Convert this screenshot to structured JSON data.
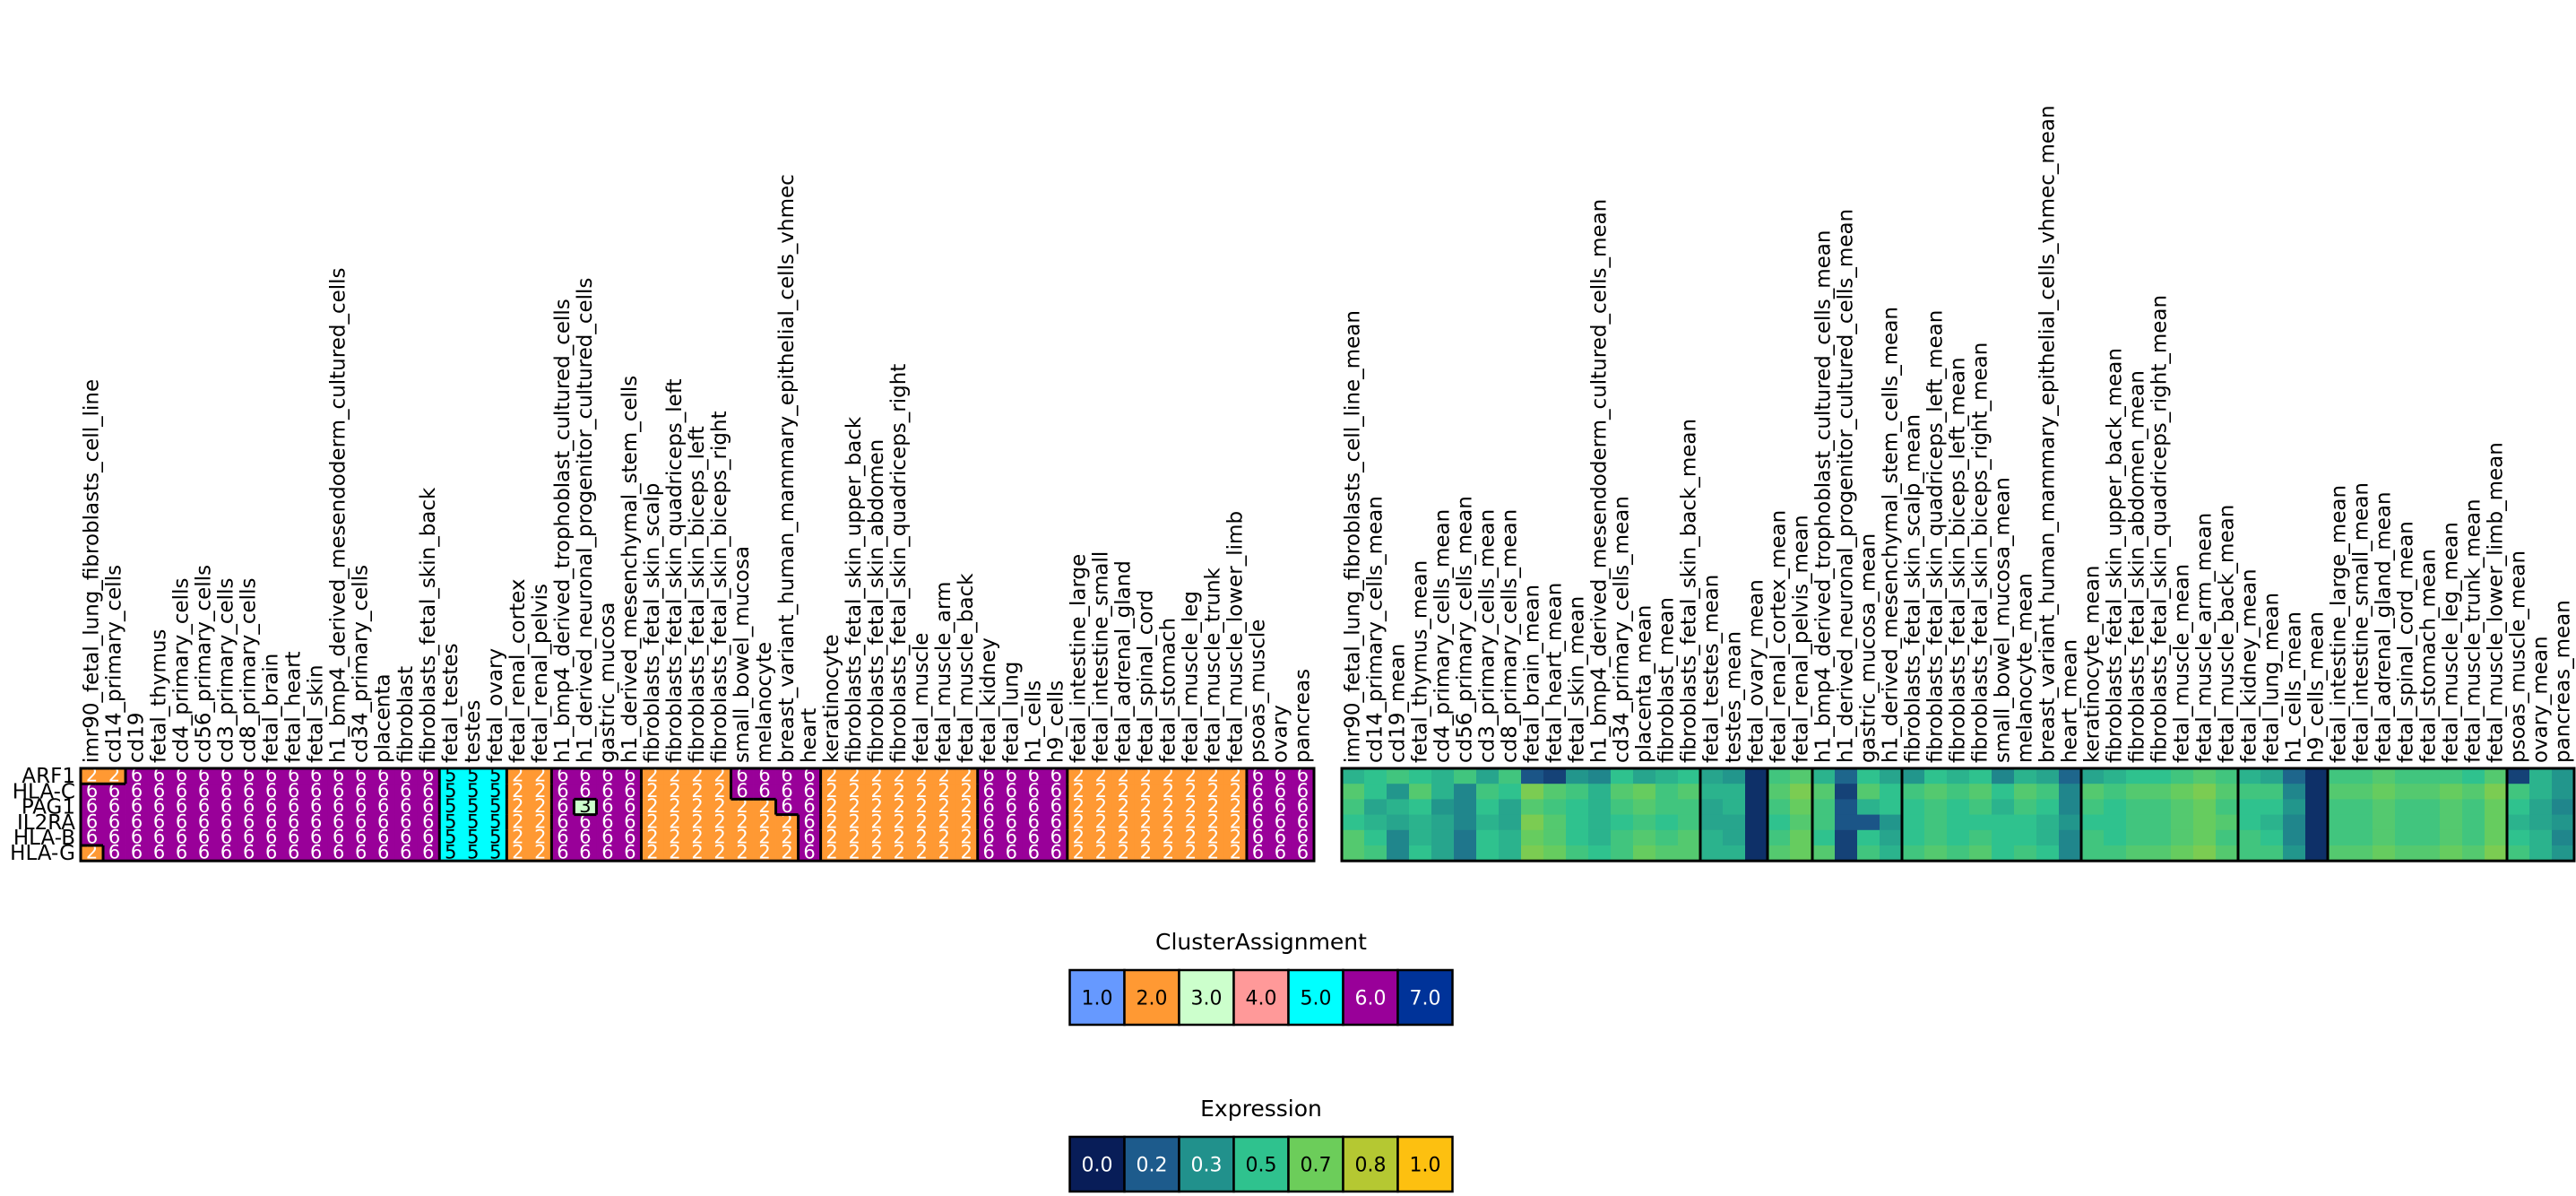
{
  "chart_data": [
    {
      "type": "heatmap",
      "name": "cluster-assignment-heatmap",
      "rows": [
        "ARF1",
        "HLA-C",
        "PAG1",
        "IL2RA",
        "HLA-B",
        "HLA-G"
      ],
      "columns": [
        "imr90_fetal_lung_fibroblasts_cell_line",
        "cd14_primary_cells",
        "cd19",
        "fetal_thymus",
        "cd4_primary_cells",
        "cd56_primary_cells",
        "cd3_primary_cells",
        "cd8_primary_cells",
        "fetal_brain",
        "fetal_heart",
        "fetal_skin",
        "h1_bmp4_derived_mesendoderm_cultured_cells",
        "cd34_primary_cells",
        "placenta",
        "fibroblast",
        "fibroblasts_fetal_skin_back",
        "fetal_testes",
        "testes",
        "fetal_ovary",
        "fetal_renal_cortex",
        "fetal_renal_pelvis",
        "h1_bmp4_derived_trophoblast_cultured_cells",
        "h1_derived_neuronal_progenitor_cultured_cells",
        "gastric_mucosa",
        "h1_derived_mesenchymal_stem_cells",
        "fibroblasts_fetal_skin_scalp",
        "fibroblasts_fetal_skin_quadriceps_left",
        "fibroblasts_fetal_skin_biceps_left",
        "fibroblasts_fetal_skin_biceps_right",
        "small_bowel_mucosa",
        "melanocyte",
        "breast_variant_human_mammary_epithelial_cells_vhmec",
        "heart",
        "keratinocyte",
        "fibroblasts_fetal_skin_upper_back",
        "fibroblasts_fetal_skin_abdomen",
        "fibroblasts_fetal_skin_quadriceps_right",
        "fetal_muscle",
        "fetal_muscle_arm",
        "fetal_muscle_back",
        "fetal_kidney",
        "fetal_lung",
        "h1_cells",
        "h9_cells",
        "fetal_intestine_large",
        "fetal_intestine_small",
        "fetal_adrenal_gland",
        "fetal_spinal_cord",
        "fetal_stomach",
        "fetal_muscle_leg",
        "fetal_muscle_trunk",
        "fetal_muscle_lower_limb",
        "psoas_muscle",
        "ovary",
        "pancreas"
      ],
      "values": [
        [
          2,
          2,
          6,
          6,
          6,
          6,
          6,
          6,
          6,
          6,
          6,
          6,
          6,
          6,
          6,
          6,
          5,
          5,
          5,
          2,
          2,
          6,
          6,
          6,
          6,
          2,
          2,
          2,
          2,
          6,
          6,
          6,
          6,
          2,
          2,
          2,
          2,
          2,
          2,
          2,
          6,
          6,
          6,
          6,
          2,
          2,
          2,
          2,
          2,
          2,
          2,
          2,
          6,
          6,
          6
        ],
        [
          6,
          6,
          6,
          6,
          6,
          6,
          6,
          6,
          6,
          6,
          6,
          6,
          6,
          6,
          6,
          6,
          5,
          5,
          5,
          2,
          2,
          6,
          6,
          6,
          6,
          2,
          2,
          2,
          2,
          6,
          6,
          6,
          6,
          2,
          2,
          2,
          2,
          2,
          2,
          2,
          6,
          6,
          6,
          6,
          2,
          2,
          2,
          2,
          2,
          2,
          2,
          2,
          6,
          6,
          6
        ],
        [
          6,
          6,
          6,
          6,
          6,
          6,
          6,
          6,
          6,
          6,
          6,
          6,
          6,
          6,
          6,
          6,
          5,
          5,
          5,
          2,
          2,
          6,
          3,
          6,
          6,
          2,
          2,
          2,
          2,
          2,
          2,
          6,
          6,
          2,
          2,
          2,
          2,
          2,
          2,
          2,
          6,
          6,
          6,
          6,
          2,
          2,
          2,
          2,
          2,
          2,
          2,
          2,
          6,
          6,
          6
        ],
        [
          6,
          6,
          6,
          6,
          6,
          6,
          6,
          6,
          6,
          6,
          6,
          6,
          6,
          6,
          6,
          6,
          5,
          5,
          5,
          2,
          2,
          6,
          6,
          6,
          6,
          2,
          2,
          2,
          2,
          2,
          2,
          2,
          6,
          2,
          2,
          2,
          2,
          2,
          2,
          2,
          6,
          6,
          6,
          6,
          2,
          2,
          2,
          2,
          2,
          2,
          2,
          2,
          6,
          6,
          6
        ],
        [
          6,
          6,
          6,
          6,
          6,
          6,
          6,
          6,
          6,
          6,
          6,
          6,
          6,
          6,
          6,
          6,
          5,
          5,
          5,
          2,
          2,
          6,
          6,
          6,
          6,
          2,
          2,
          2,
          2,
          2,
          2,
          2,
          6,
          2,
          2,
          2,
          2,
          2,
          2,
          2,
          6,
          6,
          6,
          6,
          2,
          2,
          2,
          2,
          2,
          2,
          2,
          2,
          6,
          6,
          6
        ],
        [
          2,
          6,
          6,
          6,
          6,
          6,
          6,
          6,
          6,
          6,
          6,
          6,
          6,
          6,
          6,
          6,
          5,
          5,
          5,
          2,
          2,
          6,
          6,
          6,
          6,
          2,
          2,
          2,
          2,
          2,
          2,
          2,
          6,
          2,
          2,
          2,
          2,
          2,
          2,
          2,
          6,
          6,
          6,
          6,
          2,
          2,
          2,
          2,
          2,
          2,
          2,
          2,
          6,
          6,
          6
        ]
      ]
    },
    {
      "type": "heatmap",
      "name": "expression-heatmap",
      "rows": [
        "ARF1",
        "HLA-C",
        "PAG1",
        "IL2RA",
        "HLA-B",
        "HLA-G"
      ],
      "columns": [
        "imr90_fetal_lung_fibroblasts_cell_line_mean",
        "cd14_primary_cells_mean",
        "cd19_mean",
        "fetal_thymus_mean",
        "cd4_primary_cells_mean",
        "cd56_primary_cells_mean",
        "cd3_primary_cells_mean",
        "cd8_primary_cells_mean",
        "fetal_brain_mean",
        "fetal_heart_mean",
        "fetal_skin_mean",
        "h1_bmp4_derived_mesendoderm_cultured_cells_mean",
        "cd34_primary_cells_mean",
        "placenta_mean",
        "fibroblast_mean",
        "fibroblasts_fetal_skin_back_mean",
        "fetal_testes_mean",
        "testes_mean",
        "fetal_ovary_mean",
        "fetal_renal_cortex_mean",
        "fetal_renal_pelvis_mean",
        "h1_bmp4_derived_trophoblast_cultured_cells_mean",
        "h1_derived_neuronal_progenitor_cultured_cells_mean",
        "gastric_mucosa_mean",
        "h1_derived_mesenchymal_stem_cells_mean",
        "fibroblasts_fetal_skin_scalp_mean",
        "fibroblasts_fetal_skin_quadriceps_left_mean",
        "fibroblasts_fetal_skin_biceps_left_mean",
        "fibroblasts_fetal_skin_biceps_right_mean",
        "small_bowel_mucosa_mean",
        "melanocyte_mean",
        "breast_variant_human_mammary_epithelial_cells_vhmec_mean",
        "heart_mean",
        "keratinocyte_mean",
        "fibroblasts_fetal_skin_upper_back_mean",
        "fibroblasts_fetal_skin_abdomen_mean",
        "fibroblasts_fetal_skin_quadriceps_right_mean",
        "fetal_muscle_mean",
        "fetal_muscle_arm_mean",
        "fetal_muscle_back_mean",
        "fetal_kidney_mean",
        "fetal_lung_mean",
        "h1_cells_mean",
        "h9_cells_mean",
        "fetal_intestine_large_mean",
        "fetal_intestine_small_mean",
        "fetal_adrenal_gland_mean",
        "fetal_spinal_cord_mean",
        "fetal_stomach_mean",
        "fetal_muscle_leg_mean",
        "fetal_muscle_trunk_mean",
        "fetal_muscle_lower_limb_mean",
        "psoas_muscle_mean",
        "ovary_mean",
        "pancreas_mean"
      ],
      "values": [
        [
          0.45,
          0.5,
          0.55,
          0.5,
          0.45,
          0.55,
          0.4,
          0.55,
          0.15,
          0.1,
          0.35,
          0.3,
          0.5,
          0.4,
          0.45,
          0.5,
          0.4,
          0.35,
          0.05,
          0.55,
          0.6,
          0.45,
          0.2,
          0.5,
          0.4,
          0.35,
          0.5,
          0.45,
          0.5,
          0.3,
          0.45,
          0.4,
          0.2,
          0.4,
          0.45,
          0.5,
          0.5,
          0.55,
          0.6,
          0.55,
          0.45,
          0.4,
          0.2,
          0.05,
          0.55,
          0.55,
          0.6,
          0.55,
          0.55,
          0.55,
          0.5,
          0.6,
          0.1,
          0.45,
          0.35
        ],
        [
          0.6,
          0.5,
          0.35,
          0.6,
          0.45,
          0.3,
          0.55,
          0.5,
          0.7,
          0.6,
          0.55,
          0.45,
          0.6,
          0.65,
          0.55,
          0.6,
          0.45,
          0.45,
          0.05,
          0.6,
          0.7,
          0.6,
          0.1,
          0.6,
          0.5,
          0.55,
          0.6,
          0.55,
          0.6,
          0.5,
          0.6,
          0.55,
          0.3,
          0.6,
          0.55,
          0.6,
          0.6,
          0.65,
          0.7,
          0.6,
          0.55,
          0.55,
          0.3,
          0.05,
          0.6,
          0.6,
          0.65,
          0.6,
          0.6,
          0.65,
          0.6,
          0.7,
          0.55,
          0.45,
          0.35
        ],
        [
          0.55,
          0.4,
          0.45,
          0.5,
          0.35,
          0.3,
          0.5,
          0.4,
          0.6,
          0.55,
          0.5,
          0.45,
          0.55,
          0.6,
          0.55,
          0.55,
          0.4,
          0.45,
          0.05,
          0.55,
          0.65,
          0.55,
          0.15,
          0.45,
          0.5,
          0.5,
          0.55,
          0.5,
          0.55,
          0.45,
          0.55,
          0.5,
          0.3,
          0.55,
          0.5,
          0.55,
          0.55,
          0.6,
          0.65,
          0.55,
          0.5,
          0.5,
          0.35,
          0.05,
          0.55,
          0.55,
          0.6,
          0.55,
          0.55,
          0.6,
          0.55,
          0.65,
          0.5,
          0.4,
          0.3
        ],
        [
          0.5,
          0.45,
          0.4,
          0.45,
          0.4,
          0.3,
          0.45,
          0.4,
          0.7,
          0.6,
          0.5,
          0.45,
          0.5,
          0.55,
          0.5,
          0.55,
          0.4,
          0.4,
          0.05,
          0.5,
          0.6,
          0.55,
          0.15,
          0.15,
          0.35,
          0.5,
          0.55,
          0.5,
          0.5,
          0.5,
          0.5,
          0.45,
          0.35,
          0.5,
          0.5,
          0.55,
          0.55,
          0.6,
          0.65,
          0.6,
          0.5,
          0.45,
          0.3,
          0.05,
          0.55,
          0.55,
          0.6,
          0.55,
          0.55,
          0.6,
          0.55,
          0.65,
          0.45,
          0.4,
          0.35
        ],
        [
          0.6,
          0.5,
          0.3,
          0.45,
          0.4,
          0.25,
          0.5,
          0.45,
          0.65,
          0.6,
          0.5,
          0.45,
          0.55,
          0.6,
          0.55,
          0.6,
          0.45,
          0.4,
          0.05,
          0.55,
          0.65,
          0.5,
          0.1,
          0.5,
          0.4,
          0.5,
          0.55,
          0.5,
          0.55,
          0.5,
          0.5,
          0.45,
          0.3,
          0.55,
          0.5,
          0.55,
          0.55,
          0.6,
          0.65,
          0.55,
          0.55,
          0.5,
          0.3,
          0.05,
          0.55,
          0.55,
          0.6,
          0.55,
          0.55,
          0.6,
          0.55,
          0.65,
          0.5,
          0.45,
          0.3
        ],
        [
          0.6,
          0.55,
          0.3,
          0.5,
          0.4,
          0.25,
          0.5,
          0.45,
          0.7,
          0.65,
          0.55,
          0.5,
          0.55,
          0.65,
          0.6,
          0.6,
          0.45,
          0.45,
          0.05,
          0.6,
          0.65,
          0.6,
          0.1,
          0.55,
          0.45,
          0.55,
          0.6,
          0.55,
          0.6,
          0.5,
          0.55,
          0.5,
          0.3,
          0.55,
          0.55,
          0.6,
          0.6,
          0.65,
          0.7,
          0.6,
          0.55,
          0.55,
          0.35,
          0.05,
          0.6,
          0.6,
          0.65,
          0.6,
          0.6,
          0.65,
          0.6,
          0.7,
          0.55,
          0.45,
          0.35
        ]
      ]
    }
  ],
  "legends": {
    "cluster": {
      "title": "ClusterAssignment",
      "items": [
        {
          "label": "1.0",
          "color": "#6699ff"
        },
        {
          "label": "2.0",
          "color": "#ff9933"
        },
        {
          "label": "3.0",
          "color": "#ccffcc"
        },
        {
          "label": "4.0",
          "color": "#ff9999"
        },
        {
          "label": "5.0",
          "color": "#00ffff"
        },
        {
          "label": "6.0",
          "color": "#990099"
        },
        {
          "label": "7.0",
          "color": "#003399"
        }
      ]
    },
    "expression": {
      "title": "Expression",
      "items": [
        {
          "label": "0.0",
          "color": "#081d58"
        },
        {
          "label": "0.2",
          "color": "#1d5b8c"
        },
        {
          "label": "0.3",
          "color": "#21918c"
        },
        {
          "label": "0.5",
          "color": "#2fc28e"
        },
        {
          "label": "0.7",
          "color": "#6ccd5a"
        },
        {
          "label": "0.8",
          "color": "#b5c832"
        },
        {
          "label": "1.0",
          "color": "#fdc010"
        }
      ]
    }
  },
  "colors": {
    "cluster": {
      "1": "#6699ff",
      "2": "#ff9933",
      "3": "#ccffcc",
      "4": "#ff9999",
      "5": "#00ffff",
      "6": "#990099",
      "7": "#003399"
    },
    "expression_scale": [
      "#081d58",
      "#1d5b8c",
      "#21918c",
      "#2fc28e",
      "#6ccd5a",
      "#b5c832",
      "#fdc010"
    ]
  }
}
